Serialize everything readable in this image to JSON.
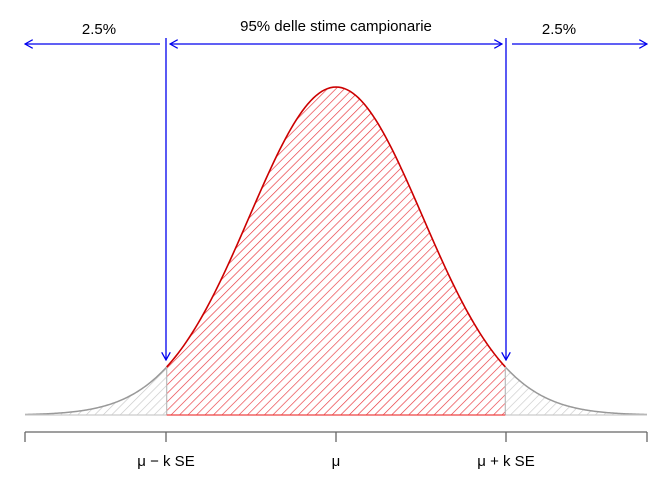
{
  "chart_data": {
    "type": "area",
    "title": "",
    "description": "Normal sampling distribution with central 95% region shaded (hatched red) and 2.5% tails (hatched gray)",
    "xlabel": "",
    "ylabel": "",
    "distribution": {
      "family": "normal",
      "mean": 0,
      "sd": 1,
      "x_range": [
        -3.6,
        3.6
      ]
    },
    "regions": [
      {
        "name": "left-tail",
        "from": -3.6,
        "to": -1.96,
        "percent": "2.5%",
        "color": "#bbbbbb"
      },
      {
        "name": "central",
        "from": -1.96,
        "to": 1.96,
        "percent": "95%",
        "color": "#dd0000"
      },
      {
        "name": "right-tail",
        "from": 1.96,
        "to": 3.6,
        "percent": "2.5%",
        "color": "#bbbbbb"
      }
    ],
    "tick_labels": [
      "",
      "μ − k SE",
      "μ",
      "μ + k SE",
      ""
    ],
    "tick_positions": [
      -3.6,
      -1.96,
      0,
      1.96,
      3.6
    ],
    "annotations": [
      {
        "text": "2.5%",
        "arrow": "left",
        "region": "left-tail"
      },
      {
        "text": "95% delle stime campionarie",
        "arrow": "both",
        "region": "central"
      },
      {
        "text": "2.5%",
        "arrow": "right",
        "region": "right-tail"
      }
    ],
    "grid": false,
    "legend": null
  },
  "labels": {
    "left_pct": "2.5%",
    "center": "95% delle stime campionarie",
    "right_pct": "2.5%",
    "tick_minus": "μ − k SE",
    "tick_mu": "μ",
    "tick_plus": "μ + k SE"
  },
  "colors": {
    "curve_center": "#cc0000",
    "hatch_center": "#e8333a",
    "curve_tail": "#999999",
    "hatch_tail": "#c8c8c8",
    "arrows": "#0000ee",
    "axis": "#666666"
  }
}
